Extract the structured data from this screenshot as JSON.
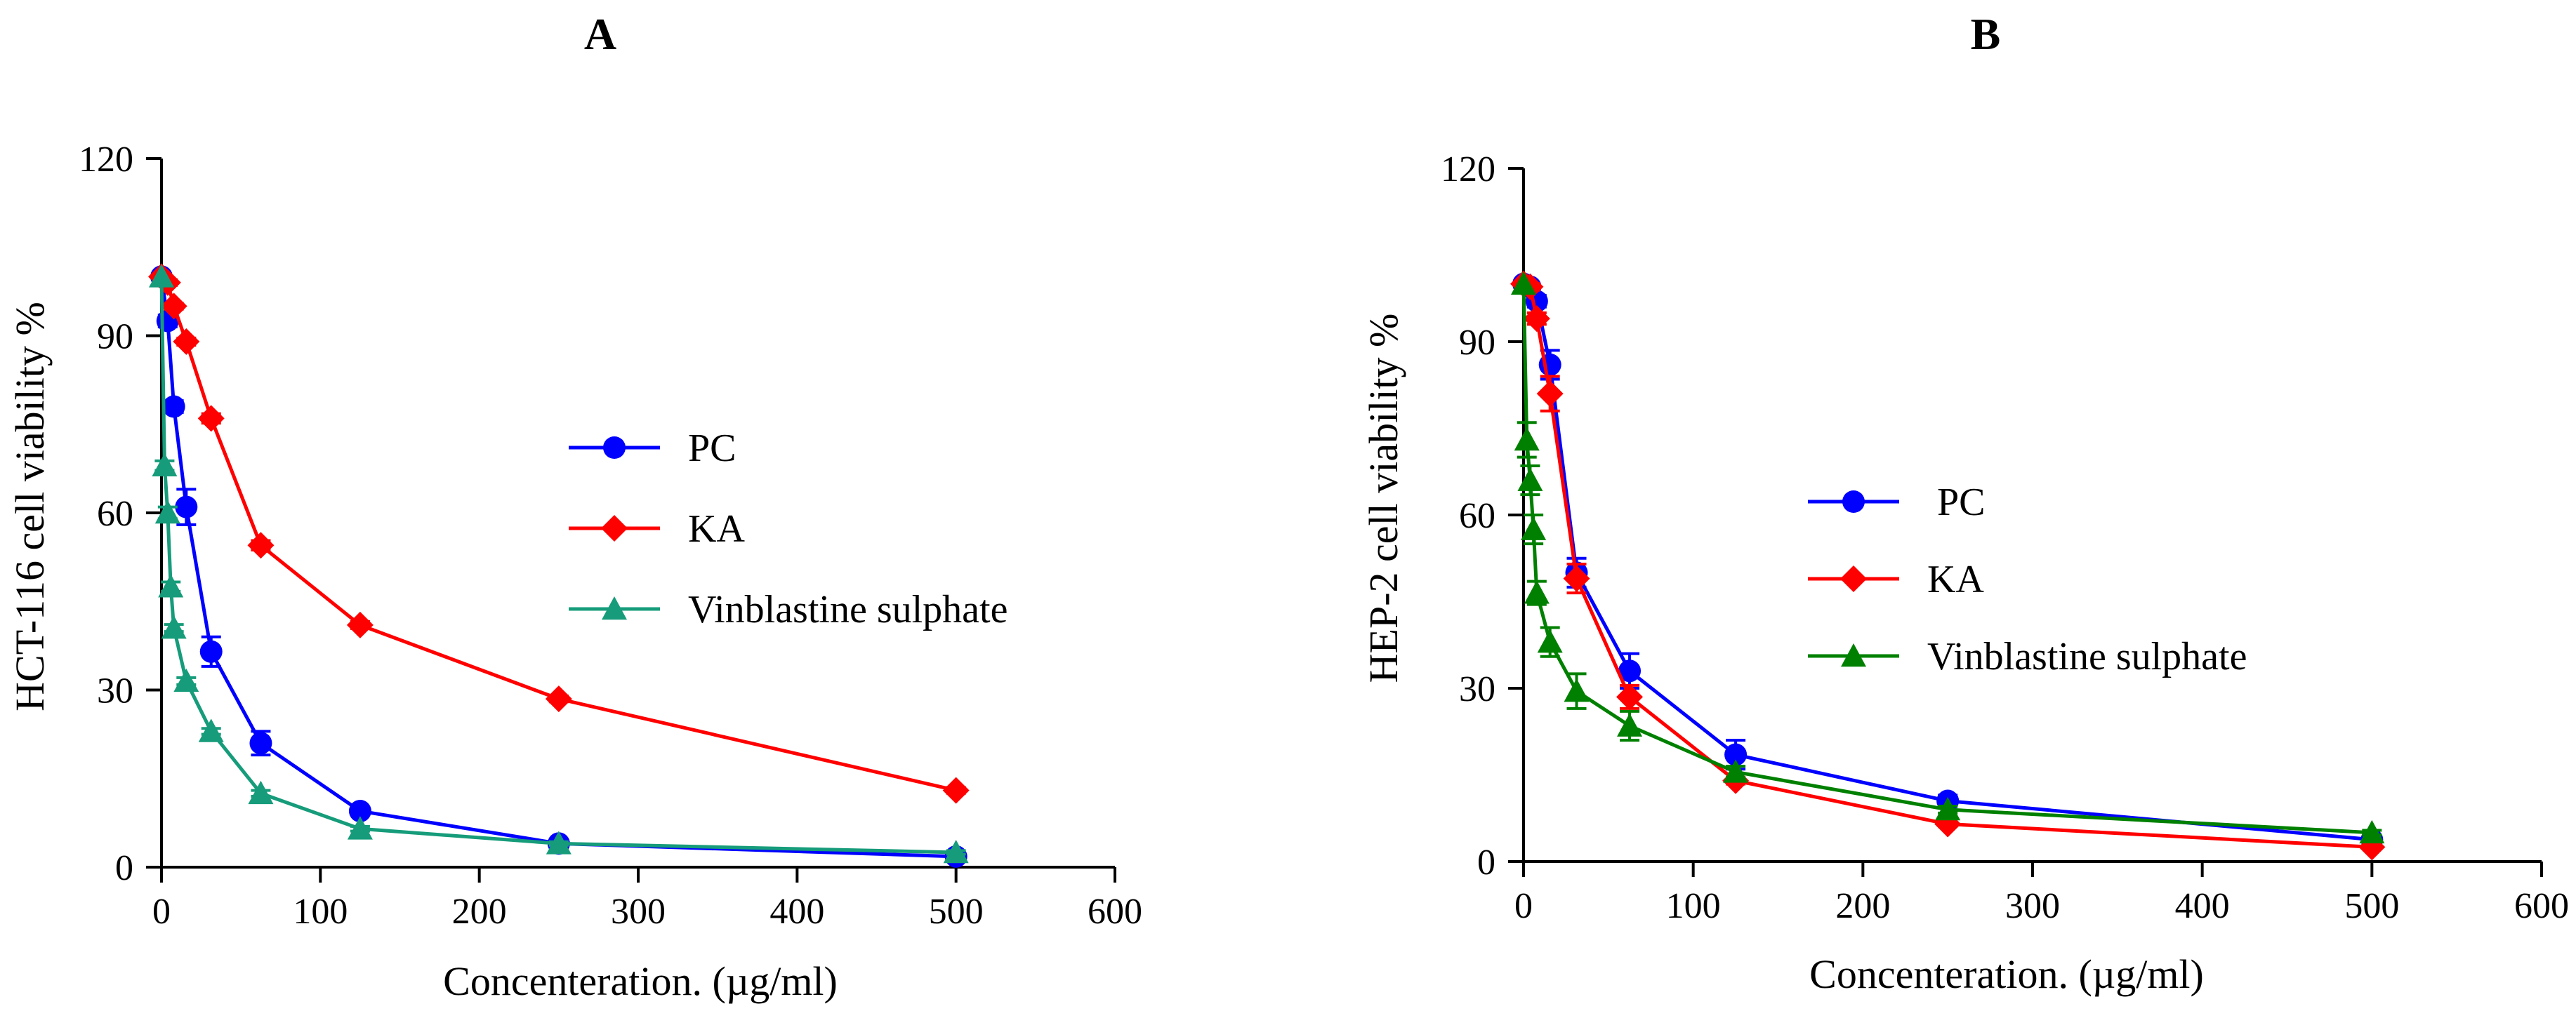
{
  "chart_data": [
    {
      "panel": "A",
      "type": "line",
      "xlabel": "Concenteration. (µg/ml)",
      "ylabel": "HCT-116 cell viability %",
      "xlim": [
        0,
        600
      ],
      "ylim": [
        0,
        120
      ],
      "xticks": [
        0,
        100,
        200,
        300,
        400,
        500,
        600
      ],
      "yticks": [
        0,
        30,
        60,
        90,
        120
      ],
      "legend_position": "center-right",
      "series": [
        {
          "name": "PC",
          "color": "#0000ff",
          "marker": "circle",
          "x": [
            0,
            3.9,
            7.8,
            15.6,
            31.25,
            62.5,
            125,
            250,
            500
          ],
          "y": [
            100,
            92.5,
            78,
            61,
            36.5,
            21,
            9.5,
            4,
            1.8
          ],
          "err": [
            0,
            1,
            1,
            3,
            2.5,
            2,
            0.6,
            0.5,
            0.3
          ]
        },
        {
          "name": "KA",
          "color": "#ff0000",
          "marker": "diamond",
          "x": [
            0,
            3.9,
            7.8,
            15.6,
            31.25,
            62.5,
            125,
            250,
            500
          ],
          "y": [
            100,
            99,
            95,
            89,
            76,
            54.5,
            41,
            28.5,
            13
          ],
          "err": [
            0,
            0.5,
            0.5,
            0.6,
            0.8,
            0.8,
            0.6,
            0.5,
            0.5
          ]
        },
        {
          "name": "Vinblastine sulphate",
          "color": "#169c7a",
          "marker": "triangle",
          "x": [
            0,
            1.95,
            3.9,
            5.85,
            7.8,
            15.6,
            31.25,
            62.5,
            125,
            250,
            500
          ],
          "y": [
            100,
            68,
            60,
            47.5,
            40.5,
            31.5,
            23,
            12.5,
            6.5,
            4,
            2.5
          ],
          "err": [
            0,
            0.8,
            1,
            0.8,
            0.6,
            0.6,
            0.5,
            0.5,
            0.4,
            0.3,
            0.3
          ]
        }
      ]
    },
    {
      "panel": "B",
      "type": "line",
      "xlabel": "Concenteration. (µg/ml)",
      "ylabel": "HEP-2 cell viability %",
      "xlim": [
        0,
        600
      ],
      "ylim": [
        0,
        120
      ],
      "xticks": [
        0,
        100,
        200,
        300,
        400,
        500,
        600
      ],
      "yticks": [
        0,
        30,
        60,
        90,
        120
      ],
      "legend_position": "center-right",
      "series": [
        {
          "name": " PC",
          "color": "#0000ff",
          "marker": "circle",
          "x": [
            0,
            3.9,
            7.8,
            15.6,
            31.25,
            62.5,
            125,
            250,
            500
          ],
          "y": [
            100,
            99.5,
            97,
            86,
            50,
            33,
            18.5,
            10.5,
            3.8
          ],
          "err": [
            0,
            0.6,
            1,
            2.5,
            2.5,
            3,
            2.5,
            1,
            0.3
          ]
        },
        {
          "name": "KA",
          "color": "#ff0000",
          "marker": "diamond",
          "x": [
            0,
            3.9,
            7.8,
            15.6,
            31.25,
            62.5,
            125,
            250,
            500
          ],
          "y": [
            100,
            99.5,
            94,
            81,
            49,
            28.5,
            14,
            6.5,
            2.5
          ],
          "err": [
            0,
            0.6,
            1,
            3,
            2.5,
            2,
            0.6,
            0.4,
            0.3
          ]
        },
        {
          "name": "Vinblastine sulphate",
          "color": "#008000",
          "marker": "triangle",
          "x": [
            0,
            1.95,
            3.9,
            5.85,
            7.8,
            15.6,
            31.25,
            62.5,
            125,
            250,
            500
          ],
          "y": [
            100,
            73,
            66,
            57.5,
            46.5,
            38,
            29.5,
            23.5,
            15.5,
            9,
            5
          ],
          "err": [
            0,
            3,
            2.5,
            2.5,
            2,
            2.5,
            3,
            2.5,
            1,
            0.6,
            0.4
          ]
        }
      ]
    }
  ]
}
